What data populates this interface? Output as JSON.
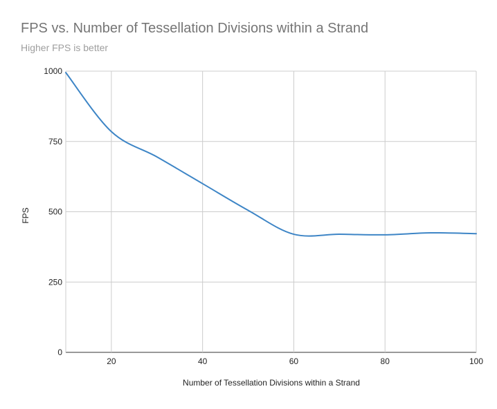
{
  "chart_data": {
    "type": "line",
    "title": "FPS vs. Number of Tessellation Divisions within a Strand",
    "subtitle": "Higher FPS is better",
    "xlabel": "Number of Tessellation Divisions within a Strand",
    "ylabel": "FPS",
    "xlim": [
      10,
      100
    ],
    "ylim": [
      0,
      1000
    ],
    "xticks": [
      "20",
      "40",
      "60",
      "80",
      "100"
    ],
    "yticks": [
      "0",
      "250",
      "500",
      "750",
      "1000"
    ],
    "grid": true,
    "legend": "none",
    "series": [
      {
        "color": "#3d85c6",
        "x": [
          10,
          20,
          30,
          40,
          50,
          60,
          70,
          80,
          90,
          100
        ],
        "y": [
          995,
          785,
          695,
          600,
          505,
          420,
          420,
          418,
          425,
          422
        ]
      }
    ]
  }
}
